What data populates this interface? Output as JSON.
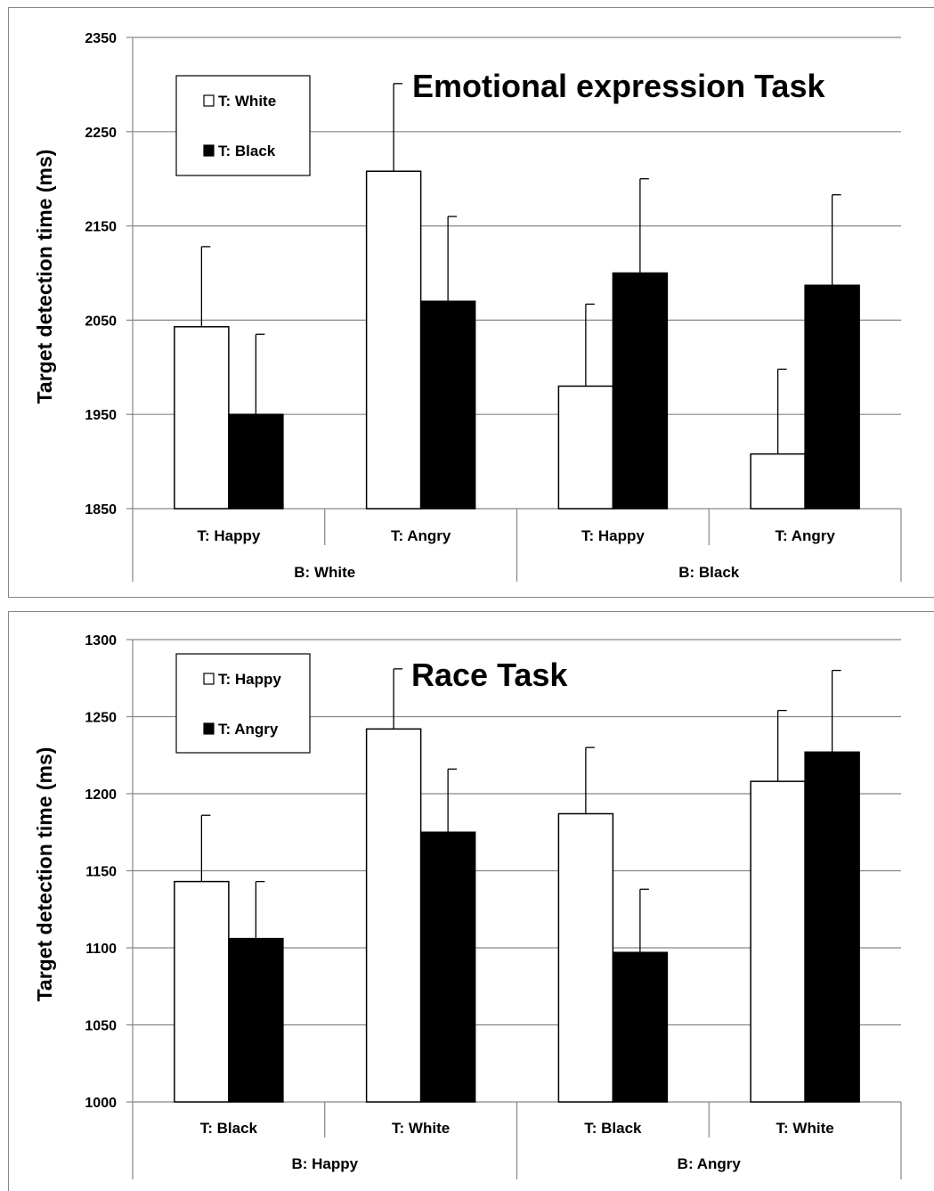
{
  "chart_data": [
    {
      "type": "bar",
      "title": "Emotional expression Task",
      "ylabel": "Target detection time (ms)",
      "ylim": [
        1850,
        2350
      ],
      "yticks": [
        "1850",
        "1950",
        "2050",
        "2150",
        "2250",
        "2350"
      ],
      "grid": true,
      "legend_position": "top-left",
      "categories": [
        "T: Happy",
        "T: Angry",
        "T: Happy",
        "T: Angry"
      ],
      "groups": [
        {
          "label": "B: White",
          "span": 2
        },
        {
          "label": "B: Black",
          "span": 2
        }
      ],
      "series": [
        {
          "name": "T: White",
          "color": "#ffffff",
          "values": [
            2043,
            2208,
            1980,
            1908
          ],
          "errors": [
            85,
            93,
            87,
            90
          ]
        },
        {
          "name": "T: Black",
          "color": "#000000",
          "values": [
            1950,
            2070,
            2100,
            2087
          ],
          "errors": [
            85,
            90,
            100,
            96
          ]
        }
      ]
    },
    {
      "type": "bar",
      "title": "Race Task",
      "ylabel": "Target detection time (ms)",
      "ylim": [
        1000,
        1300
      ],
      "yticks": [
        "1000",
        "1050",
        "1100",
        "1150",
        "1200",
        "1250",
        "1300"
      ],
      "grid": true,
      "legend_position": "top-left",
      "categories": [
        "T: Black",
        "T: White",
        "T: Black",
        "T: White"
      ],
      "groups": [
        {
          "label": "B: Happy",
          "span": 2
        },
        {
          "label": "B: Angry",
          "span": 2
        }
      ],
      "series": [
        {
          "name": "T: Happy",
          "color": "#ffffff",
          "values": [
            1143,
            1242,
            1187,
            1208
          ],
          "errors": [
            43,
            39,
            43,
            46
          ]
        },
        {
          "name": "T: Angry",
          "color": "#000000",
          "values": [
            1106,
            1175,
            1097,
            1227
          ],
          "errors": [
            37,
            41,
            41,
            53
          ]
        }
      ]
    }
  ]
}
